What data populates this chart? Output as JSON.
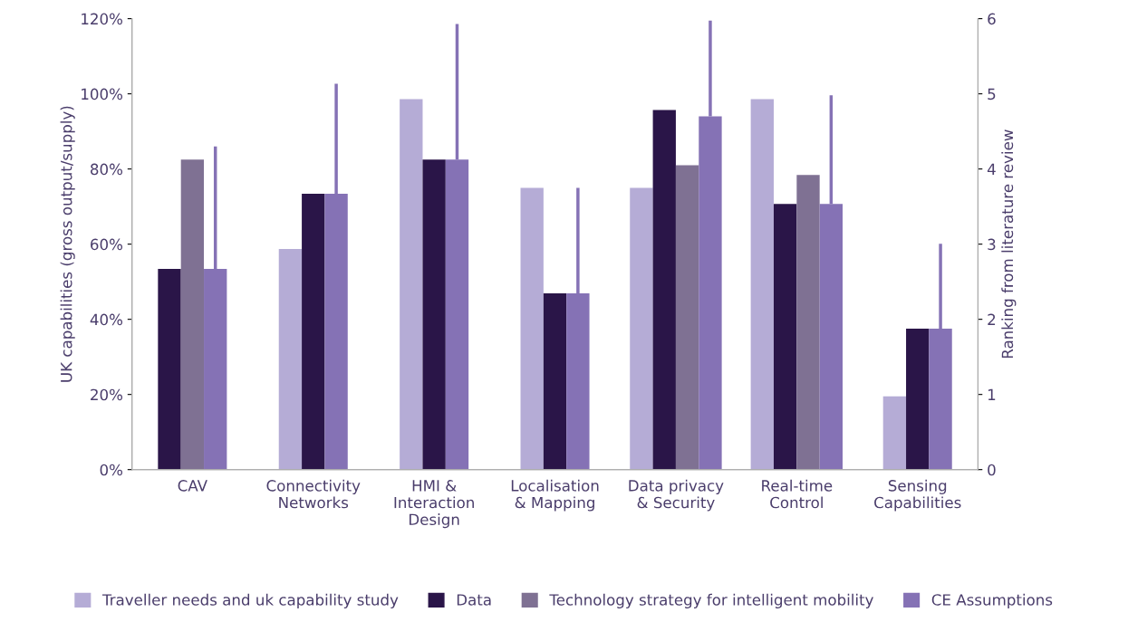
{
  "chart_data": {
    "type": "bar",
    "ylabel": "UK capabilities (gross output/supply)",
    "y2label": "Ranking from literature review",
    "categories": [
      "CAV",
      "Connectivity\nNetworks",
      "HMI &\nInteraction\nDesign",
      "Localisation\n& Mapping",
      "Data privacy\n& Security",
      "Real-time\nControl",
      "Sensing\nCapabilities"
    ],
    "series": [
      {
        "name": "Traveller needs and uk capability study",
        "color": "#b5acd6",
        "values": [
          null,
          58.7,
          98.6,
          75,
          75,
          98.6,
          19.5
        ]
      },
      {
        "name": "Data",
        "color": "#2a1548",
        "values": [
          53.4,
          73.4,
          82.5,
          46.9,
          95.7,
          70.7,
          37.5
        ]
      },
      {
        "name": "Technology strategy for intelligent mobility",
        "color": "#7f7193",
        "values": [
          82.5,
          null,
          null,
          null,
          81,
          78.4,
          null
        ]
      },
      {
        "name": "CE Assumptions",
        "color": "#8572b5",
        "values": [
          53.4,
          73.4,
          82.5,
          46.9,
          94,
          70.7,
          37.5
        ],
        "errors": [
          [
            53.4,
            86
          ],
          [
            73.4,
            102.7
          ],
          [
            82.5,
            118.6
          ],
          [
            46.9,
            75
          ],
          [
            94,
            119.5
          ],
          [
            70.7,
            99.6
          ],
          [
            37.5,
            60.1
          ]
        ]
      }
    ],
    "ylim": [
      0,
      120
    ],
    "yticks": [
      {
        "value": 0,
        "label": "0%"
      },
      {
        "value": 20,
        "label": "20%"
      },
      {
        "value": 40,
        "label": "40%"
      },
      {
        "value": 60,
        "label": "60%"
      },
      {
        "value": 80,
        "label": "80%"
      },
      {
        "value": 100,
        "label": "100%"
      },
      {
        "value": 120,
        "label": "120%"
      }
    ],
    "y2lim": [
      0,
      6
    ],
    "y2ticks": [
      0,
      1,
      2,
      3,
      4,
      5,
      6
    ],
    "grid": false,
    "legend": "bottom"
  }
}
